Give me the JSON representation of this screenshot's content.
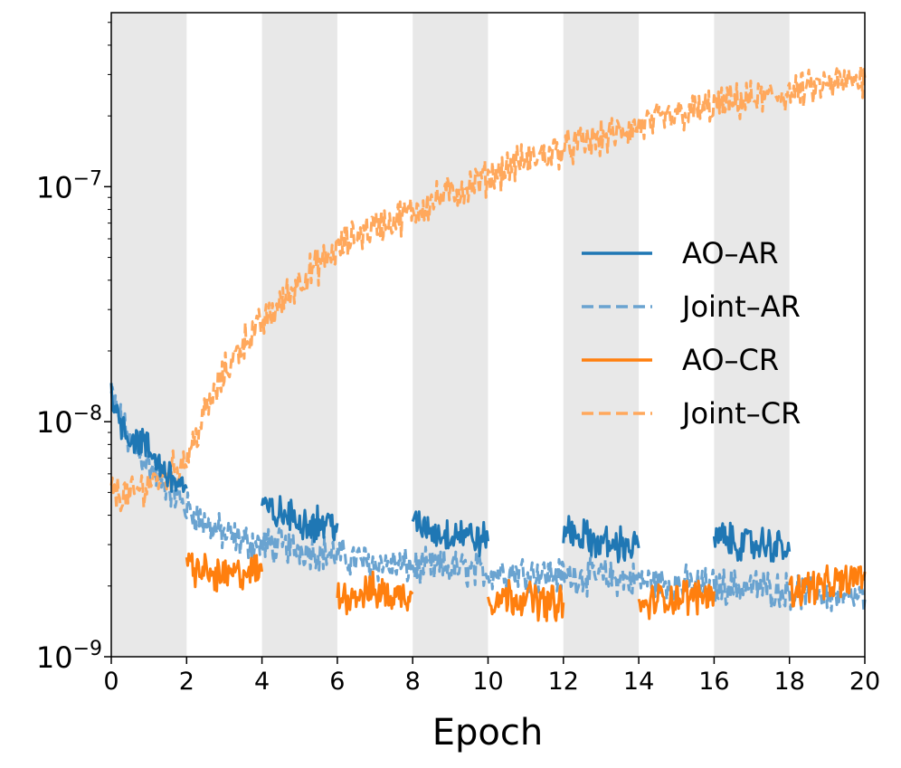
{
  "chart_data": {
    "type": "line",
    "title": "",
    "xlabel": "Epoch",
    "ylabel": "",
    "xlim": [
      0,
      20
    ],
    "ylim": [
      1e-09,
      5.5e-07
    ],
    "yscale": "log",
    "x_ticks": [
      "0",
      "2",
      "4",
      "6",
      "8",
      "10",
      "12",
      "14",
      "16",
      "18",
      "20"
    ],
    "y_ticks": [
      {
        "base": "10",
        "exp": "−9",
        "value": 1e-09
      },
      {
        "base": "10",
        "exp": "−8",
        "value": 1e-08
      },
      {
        "base": "10",
        "exp": "−7",
        "value": 1e-07
      }
    ],
    "shaded_epoch_ranges": [
      [
        0,
        2
      ],
      [
        4,
        6
      ],
      [
        8,
        10
      ],
      [
        12,
        14
      ],
      [
        16,
        18
      ]
    ],
    "legend_position": "center-right",
    "series": [
      {
        "name": "AO–AR",
        "color": "#1f77b4",
        "style": "solid",
        "points": [
          [
            0,
            1.5e-08
          ],
          [
            0.1,
            1.1e-08
          ],
          [
            0.3,
            1e-08
          ],
          [
            0.5,
            8.5e-09
          ],
          [
            0.8,
            8.2e-09
          ],
          [
            1.0,
            7.5e-09
          ],
          [
            1.3,
            6.5e-09
          ],
          [
            1.6,
            5.8e-09
          ],
          [
            2.0,
            5.2e-09
          ],
          [
            4.0,
            4.3e-09
          ],
          [
            4.3,
            4.1e-09
          ],
          [
            4.6,
            4e-09
          ],
          [
            5.0,
            3.8e-09
          ],
          [
            5.5,
            3.7e-09
          ],
          [
            6.0,
            3.7e-09
          ],
          [
            8.0,
            3.6e-09
          ],
          [
            8.4,
            3.5e-09
          ],
          [
            8.8,
            3.3e-09
          ],
          [
            9.2,
            3.4e-09
          ],
          [
            9.6,
            3.2e-09
          ],
          [
            10.0,
            3.1e-09
          ],
          [
            12.0,
            3.5e-09
          ],
          [
            12.4,
            3.3e-09
          ],
          [
            12.8,
            3.1e-09
          ],
          [
            13.2,
            3e-09
          ],
          [
            13.6,
            3e-09
          ],
          [
            14.0,
            2.9e-09
          ],
          [
            16.0,
            3.3e-09
          ],
          [
            16.4,
            3.1e-09
          ],
          [
            16.8,
            3e-09
          ],
          [
            17.2,
            3e-09
          ],
          [
            17.6,
            3e-09
          ],
          [
            18.0,
            2.8e-09
          ]
        ]
      },
      {
        "name": "Joint–AR",
        "color": "#6aa3d0",
        "style": "dashed",
        "points": [
          [
            0,
            1.3e-08
          ],
          [
            0.5,
            8e-09
          ],
          [
            1.0,
            6.5e-09
          ],
          [
            1.5,
            5.3e-09
          ],
          [
            2.0,
            4.3e-09
          ],
          [
            2.5,
            3.7e-09
          ],
          [
            3.0,
            3.3e-09
          ],
          [
            3.5,
            3.1e-09
          ],
          [
            4.0,
            3e-09
          ],
          [
            5.0,
            2.9e-09
          ],
          [
            6.0,
            2.7e-09
          ],
          [
            7.0,
            2.5e-09
          ],
          [
            8.0,
            2.4e-09
          ],
          [
            9.0,
            2.4e-09
          ],
          [
            10.0,
            2.3e-09
          ],
          [
            11.0,
            2.3e-09
          ],
          [
            12.0,
            2.2e-09
          ],
          [
            13.0,
            2.2e-09
          ],
          [
            14.0,
            2.1e-09
          ],
          [
            15.0,
            2.05e-09
          ],
          [
            16.0,
            2e-09
          ],
          [
            17.0,
            2e-09
          ],
          [
            18.0,
            1.9e-09
          ],
          [
            19.0,
            1.85e-09
          ],
          [
            20.0,
            1.75e-09
          ]
        ]
      },
      {
        "name": "AO–CR",
        "color": "#ff7f0e",
        "style": "solid",
        "points": [
          [
            2.0,
            2.5e-09
          ],
          [
            2.4,
            2.3e-09
          ],
          [
            2.8,
            2.2e-09
          ],
          [
            3.2,
            2.2e-09
          ],
          [
            3.6,
            2.3e-09
          ],
          [
            4.0,
            2.3e-09
          ],
          [
            6.0,
            1.8e-09
          ],
          [
            6.5,
            1.85e-09
          ],
          [
            7.0,
            1.9e-09
          ],
          [
            7.5,
            1.8e-09
          ],
          [
            8.0,
            1.85e-09
          ],
          [
            10.0,
            1.75e-09
          ],
          [
            10.5,
            1.8e-09
          ],
          [
            11.0,
            1.8e-09
          ],
          [
            11.5,
            1.7e-09
          ],
          [
            12.0,
            1.7e-09
          ],
          [
            14.0,
            1.6e-09
          ],
          [
            14.5,
            1.75e-09
          ],
          [
            15.0,
            1.8e-09
          ],
          [
            15.5,
            1.8e-09
          ],
          [
            16.0,
            1.9e-09
          ],
          [
            18.0,
            1.9e-09
          ],
          [
            18.5,
            2e-09
          ],
          [
            19.0,
            2e-09
          ],
          [
            19.5,
            2.1e-09
          ],
          [
            20.0,
            2.3e-09
          ]
        ]
      },
      {
        "name": "Joint–CR",
        "color": "#ffa85c",
        "style": "dashed",
        "points": [
          [
            0,
            5e-09
          ],
          [
            0.5,
            4.8e-09
          ],
          [
            1.0,
            5.5e-09
          ],
          [
            1.5,
            6e-09
          ],
          [
            2.0,
            7e-09
          ],
          [
            2.5,
            1.1e-08
          ],
          [
            3.0,
            1.6e-08
          ],
          [
            3.5,
            2.2e-08
          ],
          [
            4.0,
            2.6e-08
          ],
          [
            4.5,
            3.2e-08
          ],
          [
            5.0,
            4e-08
          ],
          [
            5.5,
            4.6e-08
          ],
          [
            6.0,
            5.4e-08
          ],
          [
            6.5,
            6.2e-08
          ],
          [
            7.0,
            6.8e-08
          ],
          [
            7.5,
            7.2e-08
          ],
          [
            8.0,
            7.8e-08
          ],
          [
            8.5,
            8.6e-08
          ],
          [
            9.0,
            9.4e-08
          ],
          [
            9.5,
            1e-07
          ],
          [
            10.0,
            1.1e-07
          ],
          [
            11.0,
            1.3e-07
          ],
          [
            12.0,
            1.45e-07
          ],
          [
            13.0,
            1.6e-07
          ],
          [
            14.0,
            1.8e-07
          ],
          [
            15.0,
            2e-07
          ],
          [
            16.0,
            2.2e-07
          ],
          [
            17.0,
            2.35e-07
          ],
          [
            18.0,
            2.5e-07
          ],
          [
            19.0,
            2.7e-07
          ],
          [
            20.0,
            2.9e-07
          ]
        ]
      }
    ]
  }
}
